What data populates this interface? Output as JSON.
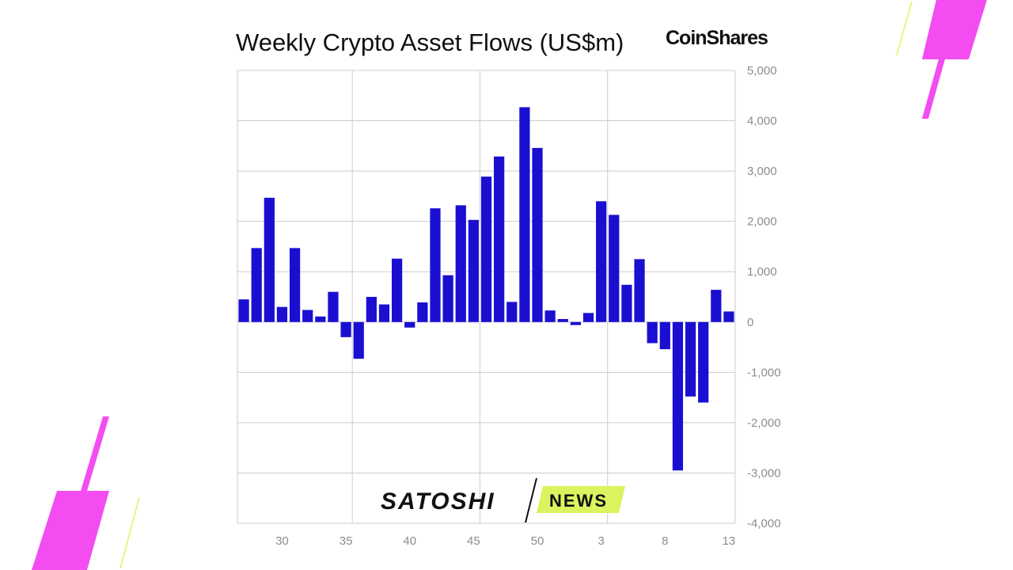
{
  "header": {
    "title": "Weekly Crypto Asset Flows (US$m)",
    "brand": "CoinShares"
  },
  "watermark": {
    "part1": "SATOSHI",
    "part2": "NEWS",
    "accent_color": "#d9f45f"
  },
  "colors": {
    "bar": "#1a0fd1",
    "grid": "#cccccc",
    "decor_magenta": "#f34df2",
    "decor_lime": "#d9f45f"
  },
  "chart_data": {
    "type": "bar",
    "title": "Weekly Crypto Asset Flows (US$m)",
    "xlabel": "",
    "ylabel": "",
    "ylim": [
      -4000,
      5000
    ],
    "yticks": [
      5000,
      4000,
      3000,
      2000,
      1000,
      0,
      -1000,
      -2000,
      -3000,
      -4000
    ],
    "ytick_labels": [
      "5,000",
      "4,000",
      "3,000",
      "2,000",
      "1,000",
      "0",
      "-1,000",
      "-2,000",
      "-3,000",
      "-4,000"
    ],
    "y_axis_side": "right",
    "grid": true,
    "categories": [
      "27",
      "28",
      "29",
      "30",
      "31",
      "32",
      "33",
      "34",
      "35",
      "36",
      "37",
      "38",
      "39",
      "40",
      "41",
      "42",
      "43",
      "44",
      "45",
      "46",
      "47",
      "48",
      "49",
      "50",
      "51",
      "52",
      "1",
      "2",
      "3",
      "4",
      "5",
      "6",
      "7",
      "8",
      "9",
      "10",
      "11",
      "12",
      "13"
    ],
    "values": [
      450,
      1470,
      2470,
      300,
      1470,
      240,
      110,
      600,
      -300,
      -730,
      500,
      350,
      1260,
      -110,
      390,
      2260,
      930,
      2320,
      2030,
      2890,
      3290,
      400,
      4270,
      3460,
      230,
      60,
      -60,
      180,
      2400,
      2130,
      740,
      1250,
      -420,
      -540,
      -2950,
      -1480,
      -1600,
      640,
      210
    ],
    "xtick_labels": [
      "30",
      "35",
      "40",
      "45",
      "50",
      "3",
      "8",
      "13"
    ],
    "xtick_index": [
      3,
      8,
      13,
      18,
      23,
      28,
      33,
      38
    ],
    "vgrid_index": [
      8.5,
      18.5,
      28.5
    ]
  }
}
